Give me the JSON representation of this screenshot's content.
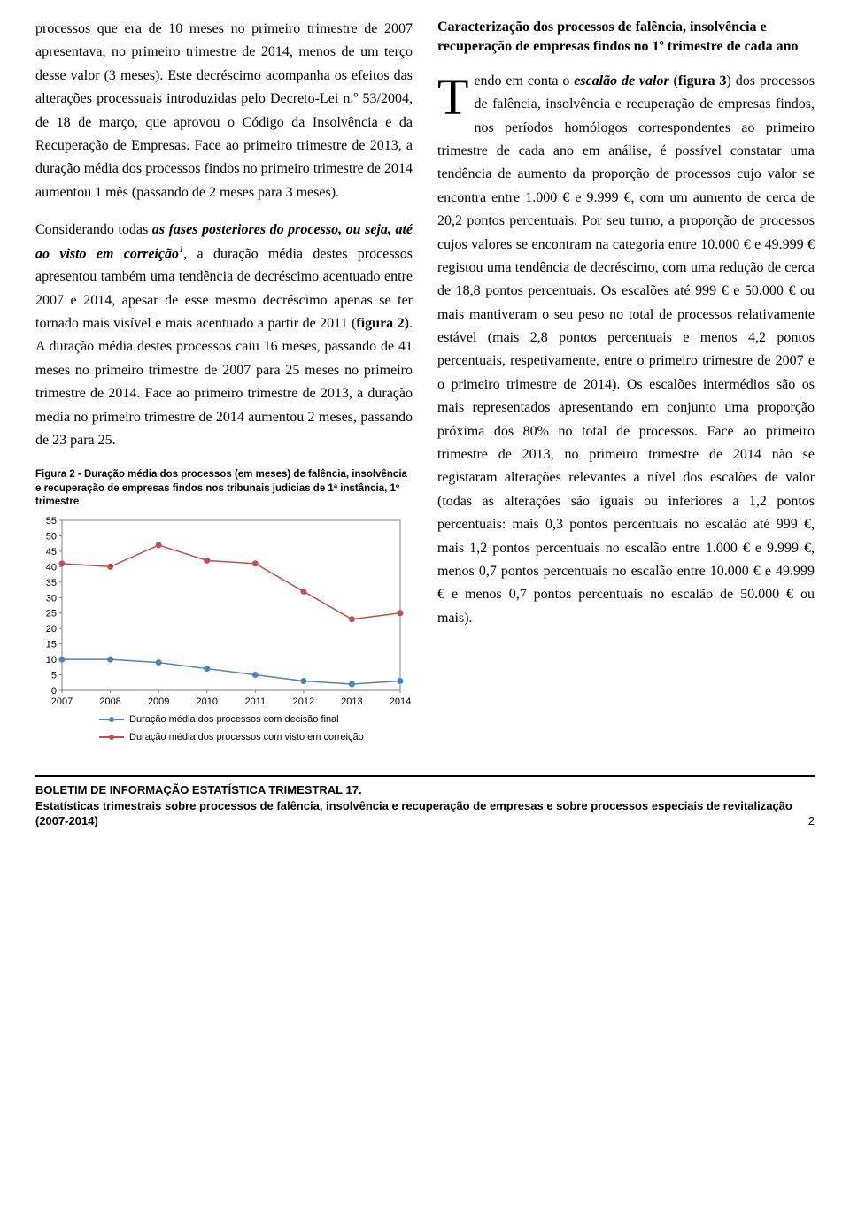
{
  "left": {
    "p1_a": "processos que era de 10 meses no primeiro trimestre de 2007 apresentava, no primeiro trimestre de 2014, menos de um terço desse valor (3 meses). Este decréscimo acompanha os efeitos das alterações processuais introduzidas pelo Decreto-Lei n.º 53/2004, de 18 de março, que aprovou o Código da Insolvência e da Recuperação de Empresas. Face ao primeiro trimestre de 2013, a duração média dos processos findos no primeiro trimestre de 2014 aumentou 1 mês (passando de 2 meses para 3 meses).",
    "p2_a": "Considerando todas ",
    "p2_bold_italic": "as fases posteriores do processo, ou seja, até ao visto em correição",
    "p2_sup": "1",
    "p2_b": ", a duração média destes processos apresentou também uma tendência de decréscimo acentuado entre 2007 e 2014, apesar de esse mesmo decréscimo apenas se ter tornado mais visível e mais acentuado a partir de 2011 (",
    "p2_fig_bold": "figura 2",
    "p2_c": "). A duração média destes processos caiu 16 meses, passando de 41 meses no primeiro trimestre de 2007 para 25 meses no primeiro trimestre de 2014. Face ao primeiro trimestre de 2013, a duração média no primeiro trimestre de 2014 aumentou 2 meses, passando de 23 para 25."
  },
  "right": {
    "heading": "Caracterização dos processos de falência, insolvência e recuperação de empresas findos no 1º trimestre de cada ano",
    "dropcap": "T",
    "p1_a": "endo em conta o ",
    "p1_bold_italic": "escalão de valor",
    "p1_b": " (",
    "p1_fig_bold": "figura 3",
    "p1_c": ") dos processos de falência, insolvência e recuperação de empresas findos, nos períodos homólogos correspondentes ao primeiro trimestre de cada ano em análise, é possível constatar uma tendência de aumento da proporção de processos cujo valor se encontra entre 1.000 € e 9.999 €, com um aumento de cerca de 20,2 pontos percentuais. Por seu turno, a proporção de processos cujos valores se encontram na categoria entre 10.000 € e 49.999 € registou uma tendência de decréscimo, com uma redução de cerca de 18,8 pontos percentuais. Os escalões até 999 € e 50.000 € ou mais mantiveram o seu peso no total de processos relativamente estável (mais 2,8 pontos percentuais e menos 4,2 pontos percentuais, respetivamente, entre o primeiro trimestre de 2007 e o primeiro trimestre de 2014). Os escalões intermédios são os mais representados apresentando em conjunto uma proporção próxima dos 80% no total de processos. Face ao primeiro trimestre de 2013, no primeiro trimestre de 2014 não se registaram alterações relevantes a nível dos escalões de valor (todas as alterações são iguais ou inferiores a 1,2 pontos percentuais: mais 0,3 pontos percentuais no escalão até 999 €, mais 1,2 pontos percentuais no escalão entre 1.000 € e 9.999 €, menos 0,7 pontos percentuais no escalão entre 10.000 € e 49.999 € e menos 0,7 pontos percentuais no escalão de 50.000 € ou mais)."
  },
  "chart": {
    "title": "Figura 2 - Duração média dos processos (em meses) de falência, insolvência e recuperação de empresas findos nos tribunais judicias de 1ª instância, 1º trimestre",
    "type": "line",
    "x_labels": [
      "2007",
      "2008",
      "2009",
      "2010",
      "2011",
      "2012",
      "2013",
      "2014"
    ],
    "y_ticks": [
      0,
      5,
      10,
      15,
      20,
      25,
      30,
      35,
      40,
      45,
      50,
      55
    ],
    "ylim": [
      0,
      55
    ],
    "background_color": "#ffffff",
    "border_color": "#808080",
    "grid_color": "#bfbfbf",
    "tick_fontsize": 11,
    "tick_color": "#000000",
    "series": [
      {
        "name": "Duração média dos processos com decisão final",
        "color": "#4f81bd",
        "line_width": 1.5,
        "marker": "circle",
        "marker_size": 4,
        "values": [
          10,
          10,
          9,
          7,
          5,
          3,
          2,
          3
        ]
      },
      {
        "name": "Duração média dos processos com visto em correição",
        "color": "#c0504d",
        "line_width": 1.5,
        "marker": "circle",
        "marker_size": 4,
        "values": [
          41,
          40,
          47,
          42,
          41,
          32,
          23,
          25
        ]
      }
    ],
    "legend_items": [
      "Duração média dos processos com decisão final",
      "Duração média dos processos com visto em correição"
    ]
  },
  "footer": {
    "line1": "BOLETIM DE INFORMAÇÃO ESTATÍSTICA TRIMESTRAL 17.",
    "line2": "Estatísticas trimestrais sobre processos de falência, insolvência e recuperação de empresas e sobre processos especiais de revitalização (2007-2014)",
    "page": "2"
  }
}
